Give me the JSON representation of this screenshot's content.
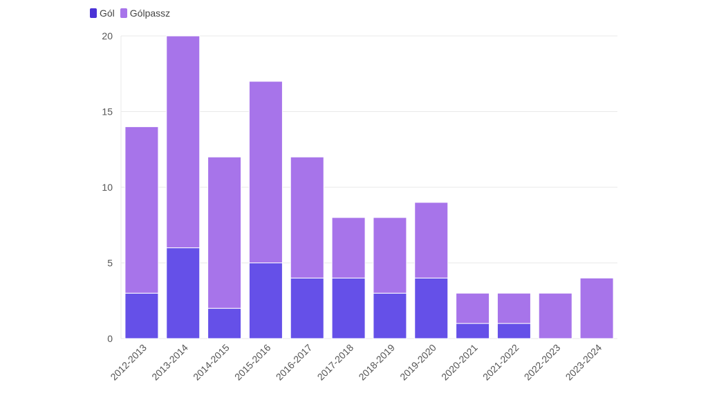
{
  "chart_data": {
    "type": "bar",
    "stacked": true,
    "categories": [
      "2012-2013",
      "2013-2014",
      "2014-2015",
      "2015-2016",
      "2016-2017",
      "2017-2018",
      "2018-2019",
      "2019-2020",
      "2020-2021",
      "2021-2022",
      "2022-2023",
      "2023-2024"
    ],
    "series": [
      {
        "name": "Gól",
        "color": "#6550e8",
        "values": [
          3,
          6,
          2,
          5,
          4,
          4,
          3,
          4,
          1,
          1,
          0,
          0
        ]
      },
      {
        "name": "Gólpassz",
        "color": "#a774ea",
        "values": [
          11,
          14,
          10,
          12,
          8,
          4,
          5,
          5,
          2,
          2,
          3,
          4
        ]
      }
    ],
    "legend_swatch_colors": [
      "#4b33d6",
      "#a774ea"
    ],
    "y_ticks": [
      "0",
      "5",
      "10",
      "15",
      "20"
    ],
    "ylim": [
      0,
      20
    ],
    "grid": true,
    "legend_position": "top-left"
  }
}
